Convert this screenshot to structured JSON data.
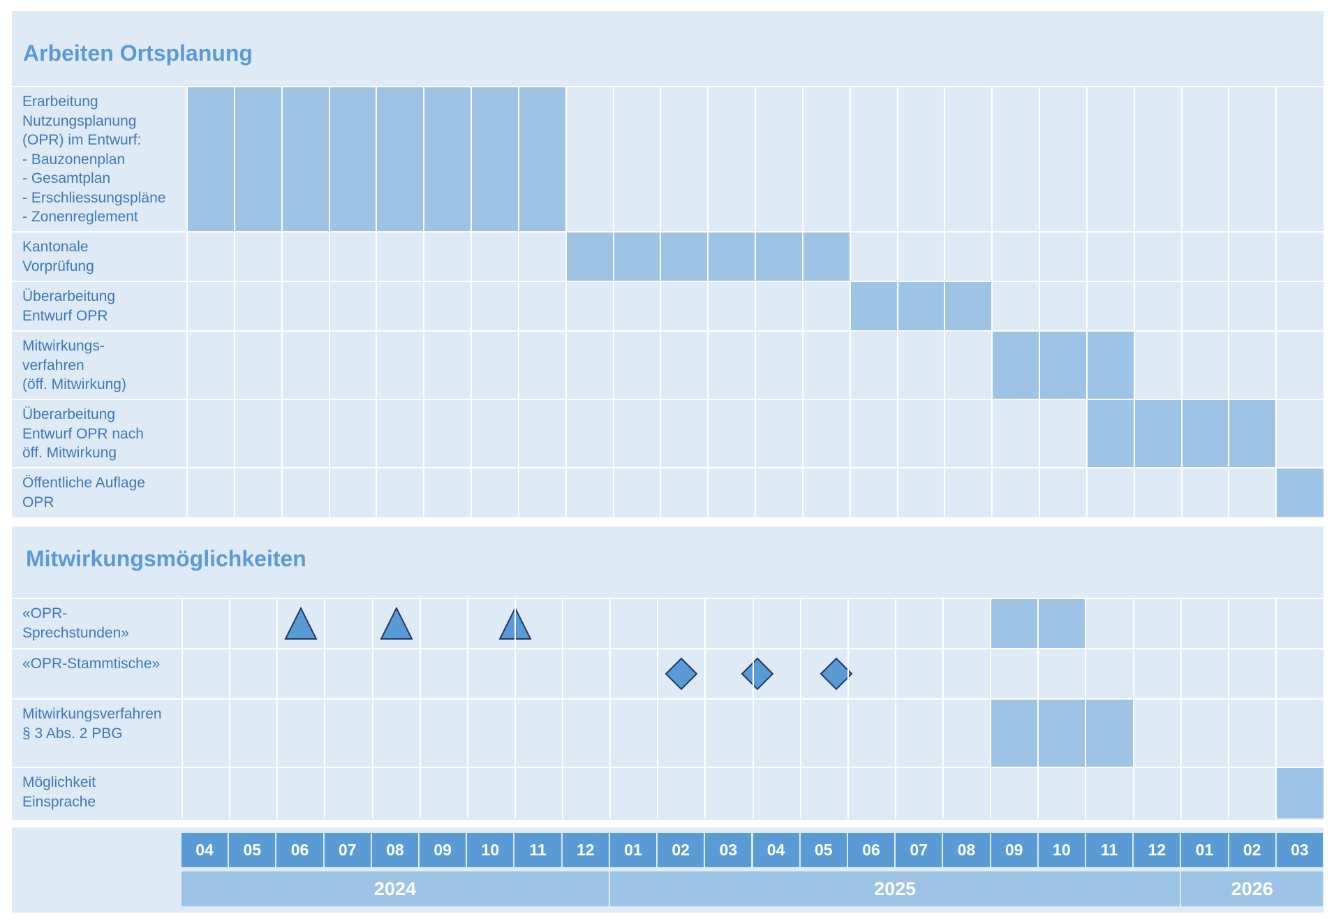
{
  "colors": {
    "band": "#deeaf6",
    "bar": "#9dc3e6",
    "accent": "#5b9bd5",
    "text": "#3d79b6",
    "marker_stroke": "#1f3864"
  },
  "months": [
    "04",
    "05",
    "06",
    "07",
    "08",
    "09",
    "10",
    "11",
    "12",
    "01",
    "02",
    "03",
    "04",
    "05",
    "06",
    "07",
    "08",
    "09",
    "10",
    "11",
    "12",
    "01",
    "02",
    "03"
  ],
  "years": [
    {
      "label": "2024",
      "start": 0,
      "span": 9
    },
    {
      "label": "2025",
      "start": 9,
      "span": 12
    },
    {
      "label": "2026",
      "start": 21,
      "span": 3
    }
  ],
  "section1": {
    "title": "Arbeiten Ortsplanung",
    "rows": [
      {
        "label": "Erarbeitung\nNutzungsplanung\n(OPR) im Entwurf:\n- Bauzonenplan\n- Gesamtplan\n- Erschliessungspläne\n- Zonenreglement",
        "bar": [
          0,
          7
        ]
      },
      {
        "label": "Kantonale\nVorprüfung",
        "bar": [
          8,
          13
        ]
      },
      {
        "label": "Überarbeitung\nEntwurf OPR",
        "bar": [
          14,
          16
        ]
      },
      {
        "label": "Mitwirkungs-\nverfahren\n(öff. Mitwirkung)",
        "bar": [
          17,
          19
        ]
      },
      {
        "label": "Überarbeitung\nEntwurf OPR nach\nöff. Mitwirkung",
        "bar": [
          19,
          22
        ]
      },
      {
        "label": "Öffentliche Auflage\nOPR",
        "bar": [
          23,
          23
        ]
      }
    ]
  },
  "section2": {
    "title": "Mitwirkungsmöglichkeiten",
    "rows": [
      {
        "label": "«OPR-\nSprechstunden»",
        "bar": [
          17,
          18
        ],
        "markers": {
          "shape": "triangle",
          "positions": [
            2.5,
            4.5,
            7.0
          ]
        }
      },
      {
        "label": "«OPR-Stammtische»",
        "bar": null,
        "markers": {
          "shape": "diamond",
          "positions": [
            10.5,
            12.1,
            13.75
          ]
        }
      },
      {
        "label": "Mitwirkungsverfahren\n§ 3 Abs. 2 PBG",
        "bar": [
          17,
          19
        ]
      },
      {
        "label": "Möglichkeit\nEinsprache",
        "bar": [
          23,
          23
        ]
      }
    ]
  }
}
